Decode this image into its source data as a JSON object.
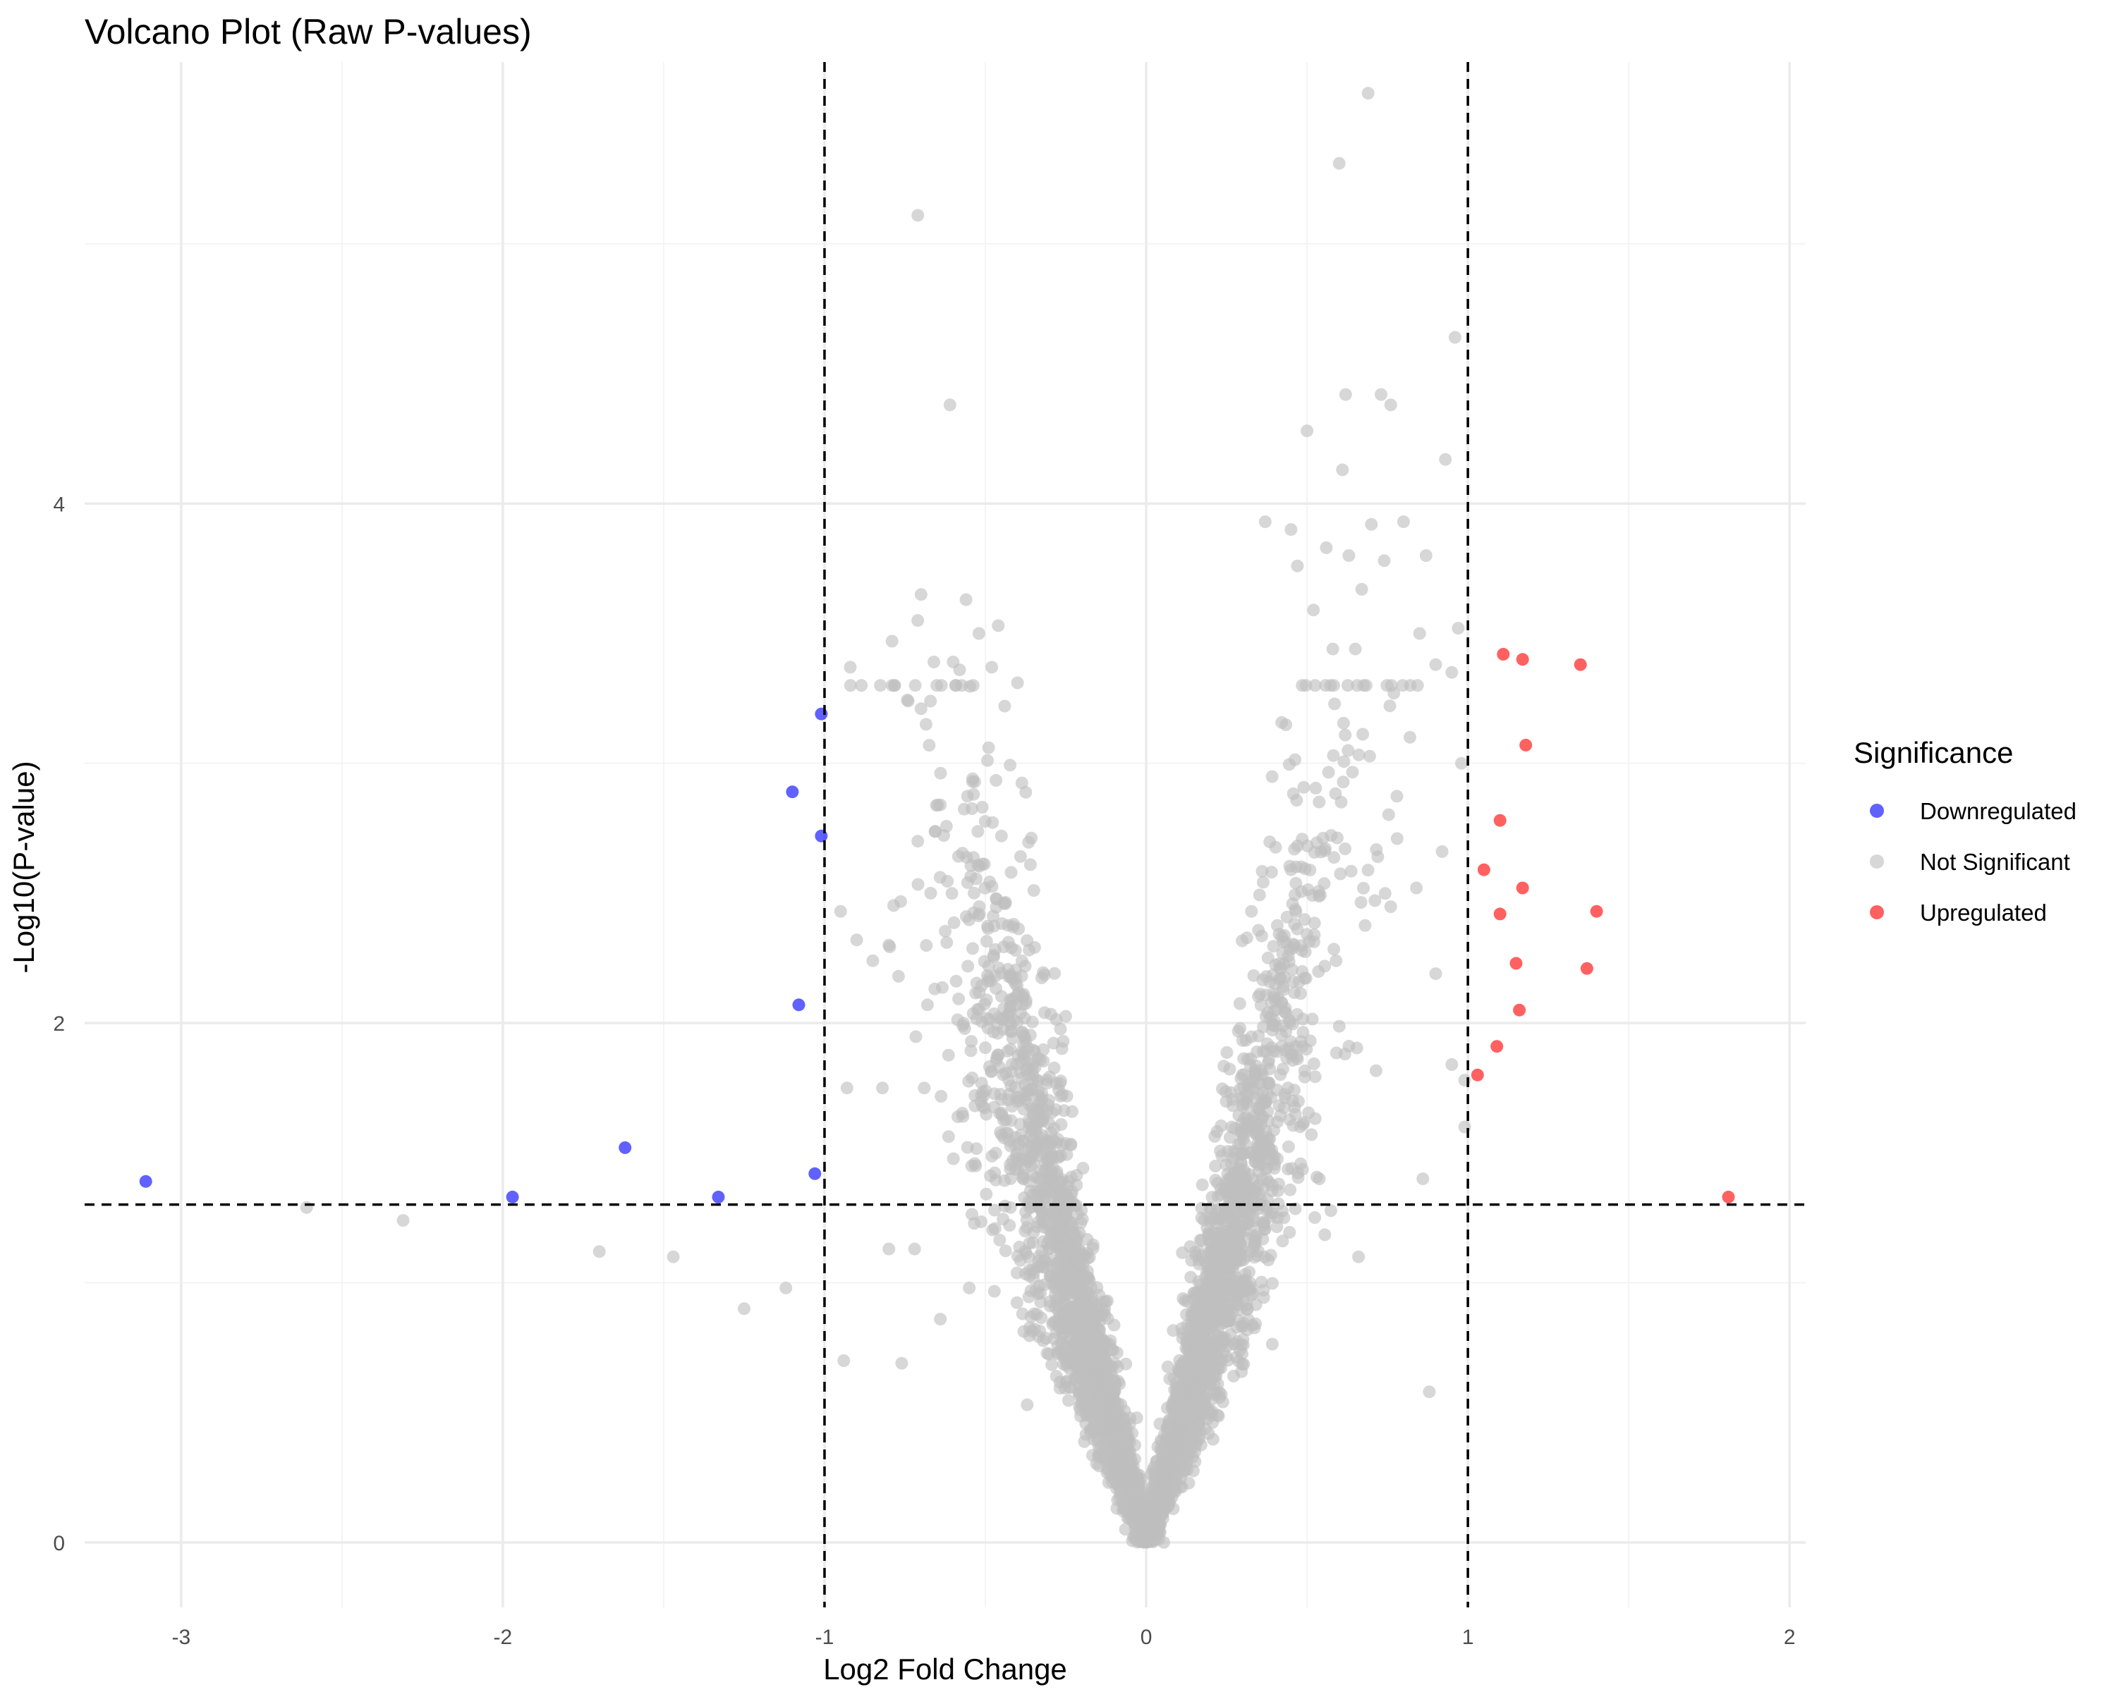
{
  "chart_data": {
    "type": "scatter",
    "title": "Volcano Plot (Raw P-values)",
    "xlabel": "Log2 Fold Change",
    "ylabel": "-Log10(P-value)",
    "xlim": [
      -3.3,
      2.05
    ],
    "ylim": [
      -0.25,
      5.7
    ],
    "x_ticks": [
      -3,
      -2,
      -1,
      0,
      1,
      2
    ],
    "y_ticks": [
      0,
      2,
      4
    ],
    "x_tick_labels": [
      "-3",
      "-2",
      "-1",
      "0",
      "1",
      "2"
    ],
    "y_tick_labels": [
      "0",
      "2",
      "4"
    ],
    "grid": true,
    "thresholds": {
      "log2fc": [
        -1,
        1
      ],
      "neg_log10_p": 1.301
    },
    "legend": {
      "title": "Significance",
      "position": "right",
      "entries": [
        {
          "label": "Downregulated",
          "color": "#0000ff"
        },
        {
          "label": "Not Significant",
          "color": "#bebebe"
        },
        {
          "label": "Upregulated",
          "color": "#ff0000"
        }
      ]
    },
    "series": [
      {
        "name": "Downregulated",
        "color": "#0000ff",
        "points": [
          [
            -3.11,
            1.39
          ],
          [
            -1.97,
            1.33
          ],
          [
            -1.62,
            1.52
          ],
          [
            -1.33,
            1.33
          ],
          [
            -1.1,
            2.89
          ],
          [
            -1.08,
            2.07
          ],
          [
            -1.03,
            1.42
          ],
          [
            -1.01,
            3.19
          ],
          [
            -1.01,
            2.72
          ]
        ]
      },
      {
        "name": "Not Significant",
        "color": "#bebebe",
        "points": [
          [
            -2.61,
            1.29
          ],
          [
            -2.31,
            1.24
          ],
          [
            -1.7,
            1.12
          ],
          [
            -1.47,
            1.1
          ],
          [
            -1.25,
            0.9
          ],
          [
            -1.12,
            0.98
          ],
          [
            -0.95,
            2.43
          ],
          [
            -0.94,
            0.7
          ],
          [
            -0.93,
            1.75
          ],
          [
            -0.92,
            3.37
          ],
          [
            -0.9,
            2.32
          ],
          [
            -0.85,
            2.24
          ],
          [
            -0.8,
            2.3
          ],
          [
            -0.82,
            1.75
          ],
          [
            -0.8,
            1.13
          ],
          [
            -0.79,
            3.47
          ],
          [
            -0.77,
            2.18
          ],
          [
            -0.76,
            0.69
          ],
          [
            -0.74,
            3.24
          ],
          [
            -0.72,
            1.13
          ],
          [
            -0.71,
            2.7
          ],
          [
            -0.7,
            3.21
          ],
          [
            -0.71,
            5.11
          ],
          [
            -0.71,
            3.55
          ],
          [
            -0.7,
            3.65
          ],
          [
            -0.69,
            1.75
          ],
          [
            -0.68,
            2.07
          ],
          [
            -0.67,
            2.5
          ],
          [
            -0.66,
            3.39
          ],
          [
            -0.64,
            2.84
          ],
          [
            -0.64,
            0.86
          ],
          [
            -0.62,
            2.31
          ],
          [
            -0.61,
            4.38
          ],
          [
            -0.6,
            3.39
          ],
          [
            -0.58,
            3.36
          ],
          [
            -0.57,
            1.99
          ],
          [
            -0.56,
            3.63
          ],
          [
            -0.55,
            0.98
          ],
          [
            -0.54,
            2.93
          ],
          [
            -0.53,
            1.45
          ],
          [
            -0.52,
            3.5
          ],
          [
            -0.49,
            3.06
          ],
          [
            -0.48,
            3.37
          ],
          [
            -0.46,
            3.53
          ],
          [
            -0.45,
            2.72
          ],
          [
            -0.44,
            3.22
          ],
          [
            -0.42,
            2.58
          ],
          [
            -0.4,
            3.31
          ],
          [
            -0.38,
            1.95
          ],
          [
            -0.37,
            0.53
          ],
          [
            -0.36,
            2.61
          ],
          [
            -0.35,
            1.46
          ],
          [
            0.37,
            3.93
          ],
          [
            0.45,
            3.9
          ],
          [
            0.47,
            3.76
          ],
          [
            0.5,
            4.28
          ],
          [
            0.52,
            3.59
          ],
          [
            0.56,
            3.83
          ],
          [
            0.58,
            3.44
          ],
          [
            0.6,
            5.31
          ],
          [
            0.62,
            4.42
          ],
          [
            0.61,
            4.13
          ],
          [
            0.63,
            3.8
          ],
          [
            0.65,
            3.44
          ],
          [
            0.67,
            3.67
          ],
          [
            0.69,
            5.58
          ],
          [
            0.7,
            3.92
          ],
          [
            0.73,
            4.42
          ],
          [
            0.74,
            3.78
          ],
          [
            0.76,
            4.38
          ],
          [
            0.77,
            3.27
          ],
          [
            0.8,
            3.93
          ],
          [
            0.82,
            3.1
          ],
          [
            0.85,
            3.5
          ],
          [
            0.87,
            3.8
          ],
          [
            0.88,
            0.58
          ],
          [
            0.9,
            3.38
          ],
          [
            0.93,
            4.17
          ],
          [
            0.95,
            3.35
          ],
          [
            0.96,
            4.64
          ],
          [
            0.97,
            3.52
          ],
          [
            0.98,
            3.0
          ],
          [
            0.99,
            1.78
          ],
          [
            0.99,
            1.6
          ],
          [
            0.86,
            1.4
          ],
          [
            0.9,
            2.19
          ],
          [
            0.92,
            2.66
          ],
          [
            0.95,
            1.84
          ],
          [
            0.78,
            2.71
          ],
          [
            0.84,
            2.52
          ],
          [
            0.72,
            2.64
          ],
          [
            0.66,
            1.1
          ]
        ],
        "cluster": {
          "description": "dense V-shaped cloud of several thousand non-significant genes",
          "left_arm_edge": [
            [
              0.0,
              0.0
            ],
            [
              -0.1,
              0.55
            ],
            [
              -0.2,
              1.05
            ],
            [
              -0.3,
              1.65
            ],
            [
              -0.4,
              2.2
            ],
            [
              -0.5,
              2.8
            ],
            [
              -0.6,
              3.0
            ]
          ],
          "right_arm_edge": [
            [
              0.0,
              0.0
            ],
            [
              0.1,
              0.55
            ],
            [
              0.2,
              1.05
            ],
            [
              0.3,
              1.65
            ],
            [
              0.4,
              2.2
            ],
            [
              0.5,
              2.8
            ],
            [
              0.6,
              3.1
            ]
          ]
        }
      },
      {
        "name": "Upregulated",
        "color": "#ff0000",
        "points": [
          [
            1.03,
            1.8
          ],
          [
            1.05,
            2.59
          ],
          [
            1.09,
            1.91
          ],
          [
            1.1,
            2.42
          ],
          [
            1.1,
            2.78
          ],
          [
            1.11,
            3.42
          ],
          [
            1.15,
            2.23
          ],
          [
            1.16,
            2.05
          ],
          [
            1.17,
            2.52
          ],
          [
            1.17,
            3.4
          ],
          [
            1.18,
            3.07
          ],
          [
            1.35,
            3.38
          ],
          [
            1.37,
            2.21
          ],
          [
            1.4,
            2.43
          ],
          [
            1.81,
            1.33
          ]
        ]
      }
    ]
  }
}
